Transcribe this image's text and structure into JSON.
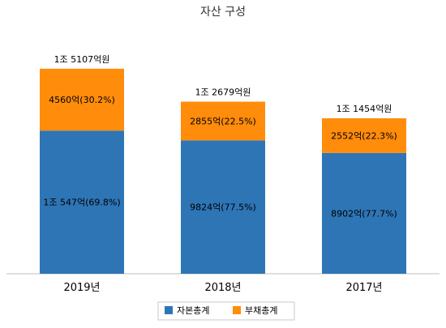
{
  "chart_data": {
    "type": "bar",
    "stacked": true,
    "title": "자산 구성",
    "xlabel": "",
    "ylabel": "",
    "categories": [
      "2019년",
      "2018년",
      "2017년"
    ],
    "series": [
      {
        "name": "자본총계",
        "color": "#2E75B6",
        "values": [
          10547,
          9824,
          8902
        ],
        "labels": [
          "1조 547억(69.8%)",
          "9824억(77.5%)",
          "8902억(77.7%)"
        ]
      },
      {
        "name": "부채총계",
        "color": "#FF8C0A",
        "values": [
          4560,
          2855,
          2552
        ],
        "labels": [
          "4560억(30.2%)",
          "2855억(22.5%)",
          "2552억(22.3%)"
        ]
      }
    ],
    "totals": [
      15107,
      12679,
      11454
    ],
    "total_labels": [
      "1조 5107억원",
      "1조 2679억원",
      "1조 1454억원"
    ],
    "ylim": [
      0,
      18500
    ],
    "grid": false,
    "legend_position": "bottom"
  }
}
